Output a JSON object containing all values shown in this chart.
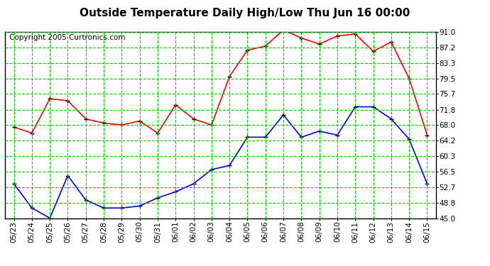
{
  "title": "Outside Temperature Daily High/Low Thu Jun 16 00:00",
  "copyright": "Copyright 2005 Curtronics.com",
  "x_labels": [
    "05/23",
    "05/24",
    "05/25",
    "05/26",
    "05/27",
    "05/28",
    "05/29",
    "05/30",
    "05/31",
    "06/01",
    "06/02",
    "06/03",
    "06/04",
    "06/05",
    "06/06",
    "06/07",
    "06/08",
    "06/09",
    "06/10",
    "06/11",
    "06/12",
    "06/13",
    "06/14",
    "06/15"
  ],
  "high_values": [
    67.5,
    66.0,
    74.5,
    74.0,
    69.5,
    68.5,
    68.0,
    69.0,
    66.0,
    73.0,
    69.5,
    68.0,
    80.0,
    86.5,
    87.5,
    91.5,
    89.5,
    88.0,
    90.0,
    90.5,
    86.2,
    88.5,
    79.5,
    65.5
  ],
  "low_values": [
    53.5,
    47.5,
    45.0,
    55.5,
    49.5,
    47.5,
    47.5,
    48.0,
    50.0,
    51.5,
    53.5,
    57.0,
    58.0,
    65.0,
    65.0,
    70.5,
    65.0,
    66.5,
    65.5,
    72.5,
    72.5,
    69.5,
    64.5,
    53.5
  ],
  "high_color": "#ff0000",
  "low_color": "#0000ff",
  "marker_color": "#000000",
  "background_color": "#ffffff",
  "plot_bg_color": "#ffffff",
  "grid_color": "#00cc00",
  "border_color": "#000000",
  "title_color": "#000000",
  "copyright_color": "#000000",
  "y_ticks": [
    45.0,
    48.8,
    52.7,
    56.5,
    60.3,
    64.2,
    68.0,
    71.8,
    75.7,
    79.5,
    83.3,
    87.2,
    91.0
  ],
  "ylim": [
    45.0,
    91.0
  ],
  "title_fontsize": 11,
  "tick_fontsize": 7.5,
  "copyright_fontsize": 7.5
}
